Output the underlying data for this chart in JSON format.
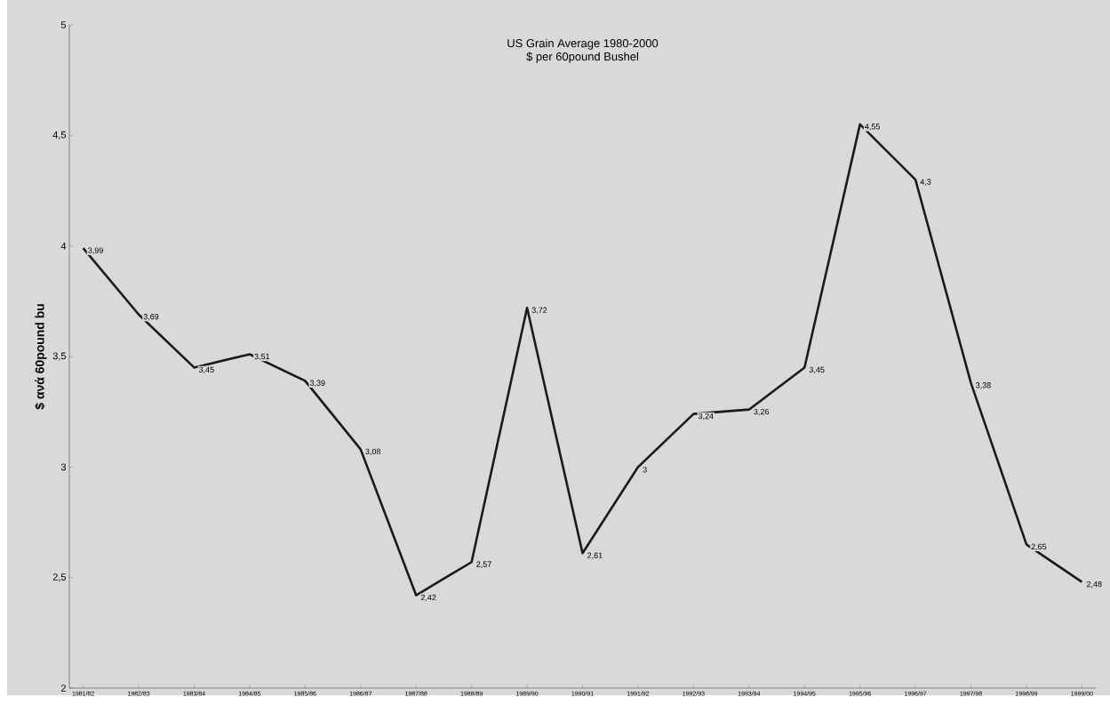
{
  "chart_data": {
    "type": "line",
    "title": "US Grain Average 1980-2000",
    "subtitle": "$ per 60pound Bushel",
    "ylabel": "$ ανά 60pound bu",
    "categories": [
      "1981/82",
      "1982/83",
      "1983/84",
      "1984/85",
      "1985/86",
      "1986/87",
      "1987/88",
      "1988/89",
      "1989/90",
      "1990/91",
      "1991/92",
      "1992/93",
      "1993/94",
      "1994/95",
      "1995/96",
      "1996/97",
      "1997/98",
      "1998/99",
      "1999/00"
    ],
    "series": [
      {
        "color": "#1a1a1a",
        "values": [
          3.99,
          3.69,
          3.45,
          3.51,
          3.39,
          3.08,
          2.42,
          2.57,
          3.72,
          2.61,
          3,
          3.24,
          3.26,
          3.45,
          4.55,
          4.3,
          3.38,
          2.65,
          2.48
        ],
        "value_labels": [
          "3,99",
          "3,69",
          "3,45",
          "3,51",
          "3,39",
          "3,08",
          "2,42",
          "2,57",
          "3,72",
          "2,61",
          "3",
          "3,24",
          "3,26",
          "3,45",
          "4,55",
          "4,3",
          "3,38",
          "2,65",
          "2,48"
        ]
      }
    ],
    "ylim": [
      2,
      5
    ],
    "yticks": [
      2,
      {
        "value": 2.5,
        "label": "2,5"
      },
      3,
      {
        "value": 3.5,
        "label": "3,5"
      },
      4,
      {
        "value": 4.5,
        "label": "4,5"
      },
      5
    ],
    "marker": "none",
    "line_style": "solid",
    "grid": false
  }
}
